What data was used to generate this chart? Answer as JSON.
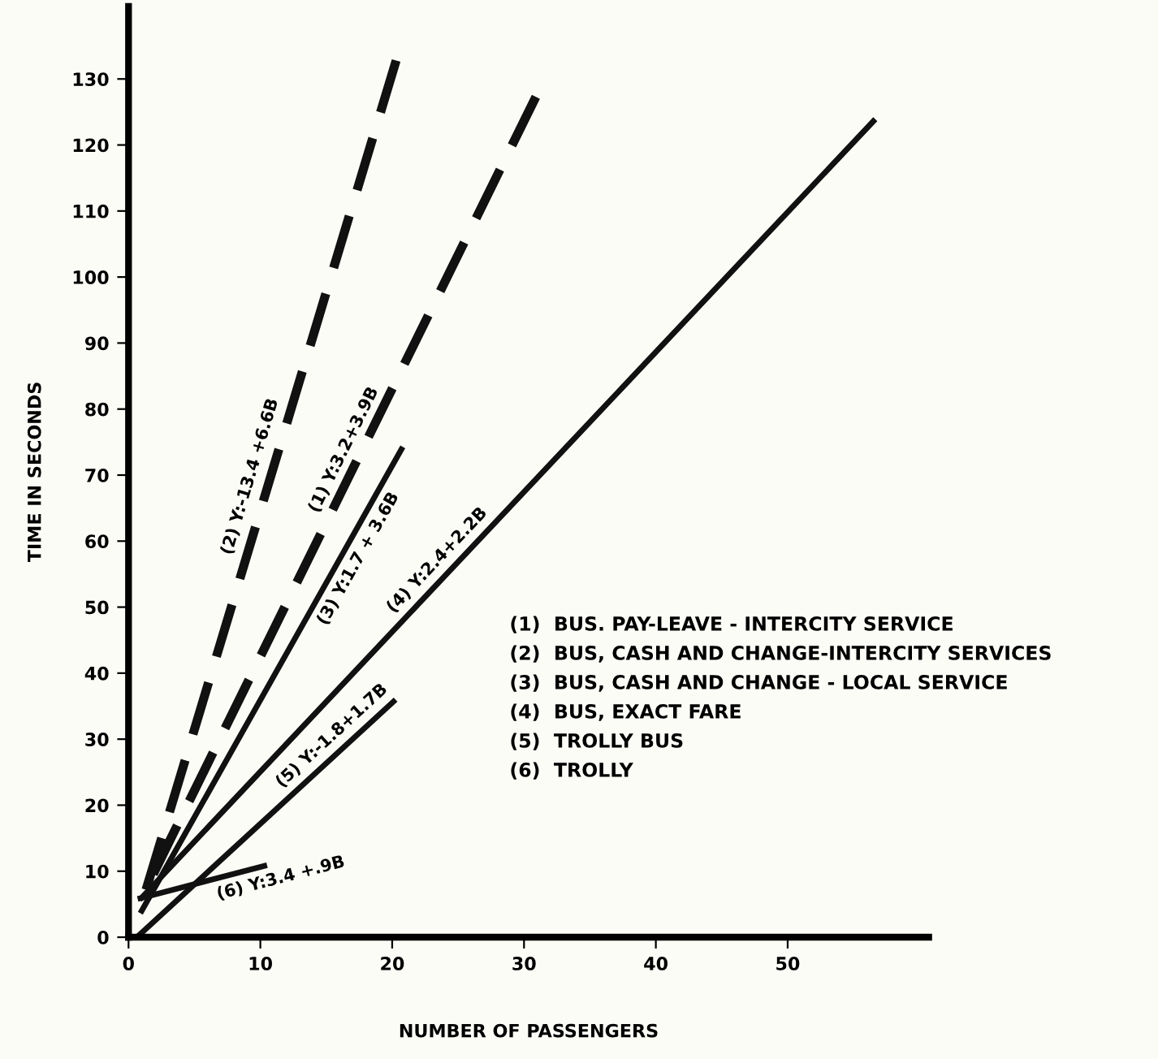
{
  "chart_data": {
    "type": "line",
    "xlabel": "NUMBER OF PASSENGERS",
    "ylabel": "TIME IN SECONDS",
    "xlim": [
      0,
      60.7
    ],
    "ylim": [
      0,
      141
    ],
    "xticks": [
      0,
      10,
      20,
      30,
      40,
      50
    ],
    "yticks": [
      0,
      10,
      20,
      30,
      40,
      50,
      60,
      70,
      80,
      90,
      100,
      110,
      120,
      130
    ],
    "grid": false,
    "legend": false,
    "marker": "none",
    "series": [
      {
        "color": "#111111",
        "line_style": "dashed",
        "x": [
          1,
          30.9
        ],
        "values": [
          6,
          127.3
        ]
      },
      {
        "color": "#111111",
        "line_style": "dashed",
        "x": [
          1,
          20.3
        ],
        "values": [
          5,
          132.8
        ]
      },
      {
        "color": "#111111",
        "line_style": "solid",
        "x": [
          1,
          20.7
        ],
        "values": [
          4,
          73.9
        ]
      },
      {
        "color": "#111111",
        "line_style": "solid",
        "x": [
          1,
          56.5
        ],
        "values": [
          6,
          123.6
        ]
      },
      {
        "color": "#111111",
        "line_style": "solid",
        "x": [
          0.9,
          20.1
        ],
        "values": [
          0.5,
          35.7
        ]
      },
      {
        "color": "#111111",
        "line_style": "solid",
        "x": [
          0.9,
          10.3
        ],
        "values": [
          5.9,
          10.8
        ]
      }
    ],
    "annotations": [
      "(1) Y:3.2+3.9B",
      "(2) Y:-13.4 +6.6B",
      "(3) Y:1.7 + 3.6B",
      "(4) Y:2.4+2.2B",
      "(5) Y:-1.8+1.7B",
      "(6) Y:3.4 +.9B",
      "(1)  BUS. PAY-LEAVE - INTERCITY SERVICE",
      "(2)  BUS, CASH AND CHANGE-INTERCITY SERVICES",
      "(3)  BUS, CASH AND CHANGE - LOCAL SERVICE",
      "(4)  BUS, EXACT FARE",
      "(5)  TROLLY BUS",
      "(6)  TROLLY"
    ]
  }
}
